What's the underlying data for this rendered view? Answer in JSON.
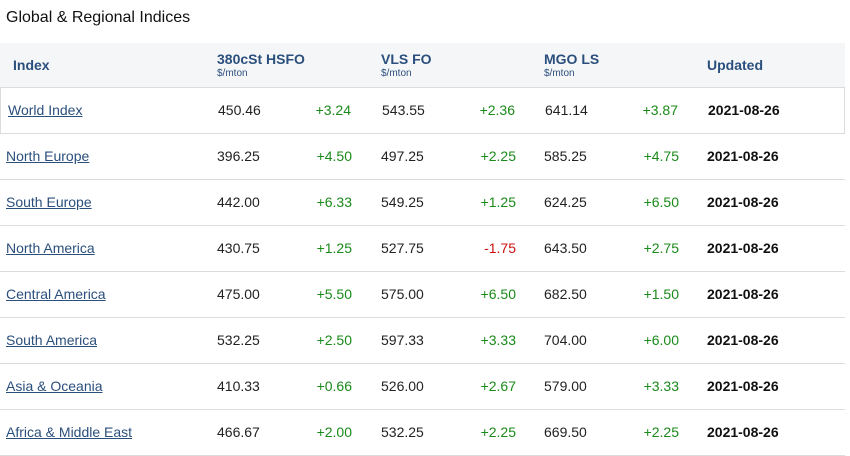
{
  "title": "Global & Regional Indices",
  "colors": {
    "positive": "#1a8a1a",
    "negative": "#cc1111",
    "link": "#2b4f7c"
  },
  "headers": {
    "index": "Index",
    "hsfo": "380cSt HSFO",
    "hsfo_unit": "$/mton",
    "vlsfo": "VLS FO",
    "vlsfo_unit": "$/mton",
    "mgo": "MGO LS",
    "mgo_unit": "$/mton",
    "updated": "Updated"
  },
  "rows": [
    {
      "name": "World Index",
      "hsfo": "450.46",
      "hsfo_chg": "+3.24",
      "vlsfo": "543.55",
      "vlsfo_chg": "+2.36",
      "mgo": "641.14",
      "mgo_chg": "+3.87",
      "updated": "2021-08-26"
    },
    {
      "name": "North Europe",
      "hsfo": "396.25",
      "hsfo_chg": "+4.50",
      "vlsfo": "497.25",
      "vlsfo_chg": "+2.25",
      "mgo": "585.25",
      "mgo_chg": "+4.75",
      "updated": "2021-08-26"
    },
    {
      "name": "South Europe",
      "hsfo": "442.00",
      "hsfo_chg": "+6.33",
      "vlsfo": "549.25",
      "vlsfo_chg": "+1.25",
      "mgo": "624.25",
      "mgo_chg": "+6.50",
      "updated": "2021-08-26"
    },
    {
      "name": "North America",
      "hsfo": "430.75",
      "hsfo_chg": "+1.25",
      "vlsfo": "527.75",
      "vlsfo_chg": "-1.75",
      "mgo": "643.50",
      "mgo_chg": "+2.75",
      "updated": "2021-08-26"
    },
    {
      "name": "Central America",
      "hsfo": "475.00",
      "hsfo_chg": "+5.50",
      "vlsfo": "575.00",
      "vlsfo_chg": "+6.50",
      "mgo": "682.50",
      "mgo_chg": "+1.50",
      "updated": "2021-08-26"
    },
    {
      "name": "South America",
      "hsfo": "532.25",
      "hsfo_chg": "+2.50",
      "vlsfo": "597.33",
      "vlsfo_chg": "+3.33",
      "mgo": "704.00",
      "mgo_chg": "+6.00",
      "updated": "2021-08-26"
    },
    {
      "name": "Asia & Oceania",
      "hsfo": "410.33",
      "hsfo_chg": "+0.66",
      "vlsfo": "526.00",
      "vlsfo_chg": "+2.67",
      "mgo": "579.00",
      "mgo_chg": "+3.33",
      "updated": "2021-08-26"
    },
    {
      "name": "Africa & Middle East",
      "hsfo": "466.67",
      "hsfo_chg": "+2.00",
      "vlsfo": "532.25",
      "vlsfo_chg": "+2.25",
      "mgo": "669.50",
      "mgo_chg": "+2.25",
      "updated": "2021-08-26"
    }
  ]
}
